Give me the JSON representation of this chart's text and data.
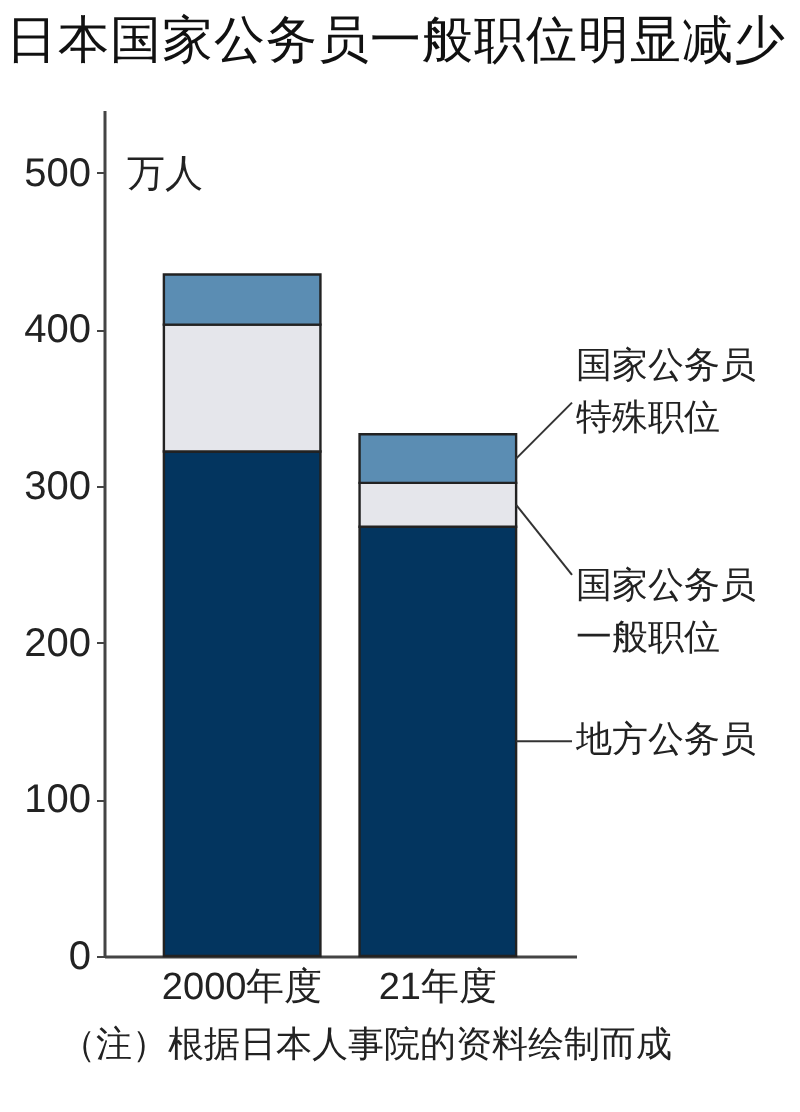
{
  "chart_data": {
    "type": "bar",
    "title": "日本国家公务员一般职位明显减少",
    "ylabel": "万人",
    "categories": [
      "2000年度",
      "21年度"
    ],
    "stacked": true,
    "series": [
      {
        "name": "地方公务员",
        "color": "#03355f",
        "values": [
          322,
          274
        ]
      },
      {
        "name": "国家公务员一般职位",
        "color": "#e5e6eb",
        "values": [
          81,
          28
        ]
      },
      {
        "name": "国家公务员特殊职位",
        "color": "#5b8db3",
        "values": [
          32,
          31
        ]
      }
    ],
    "ylim": [
      0,
      540
    ],
    "yticks": [
      0,
      100,
      200,
      300,
      400,
      500
    ],
    "grid": false,
    "annotations": [
      "（注）根据日本人事院的资料绘制而成"
    ]
  }
}
